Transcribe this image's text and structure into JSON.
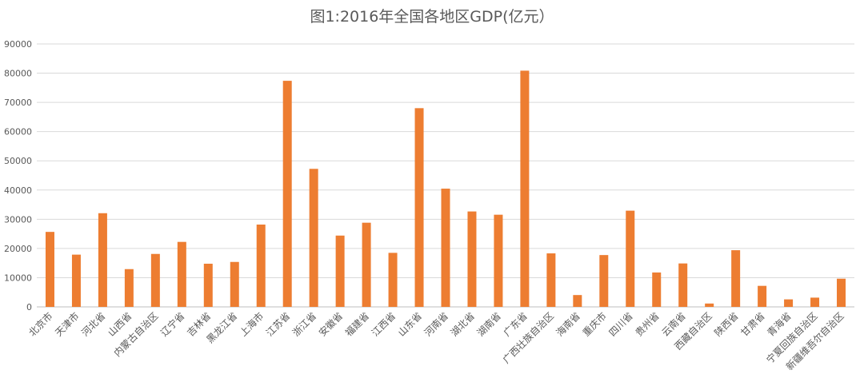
{
  "chart_data": {
    "type": "bar",
    "title": "图1:2016年全国各地区GDP(亿元）",
    "xlabel": "",
    "ylabel": "",
    "ylim": [
      0,
      90000
    ],
    "yticks": [
      "0",
      "10000",
      "20000",
      "30000",
      "40000",
      "50000",
      "60000",
      "70000",
      "80000",
      "90000"
    ],
    "grid": true,
    "bar_color": "#ED7D31",
    "categories": [
      "北京市",
      "天津市",
      "河北省",
      "山西省",
      "内蒙古自治区",
      "辽宁省",
      "吉林省",
      "黑龙江省",
      "上海市",
      "江苏省",
      "浙江省",
      "安徽省",
      "福建省",
      "江西省",
      "山东省",
      "河南省",
      "湖北省",
      "湖南省",
      "广东省",
      "广西壮族自治区",
      "海南省",
      "重庆市",
      "四川省",
      "贵州省",
      "云南省",
      "西藏自治区",
      "陕西省",
      "甘肃省",
      "青海省",
      "宁夏回族自治区",
      "新疆维吾尔自治区"
    ],
    "values": [
      25669,
      17885,
      32070,
      12928,
      18128,
      22247,
      14777,
      15386,
      28179,
      77388,
      47251,
      24408,
      28811,
      18499,
      68024,
      40472,
      32665,
      31551,
      80855,
      18318,
      4053,
      17741,
      32935,
      11777,
      14870,
      1151,
      19400,
      7200,
      2572,
      3169,
      9650
    ]
  }
}
